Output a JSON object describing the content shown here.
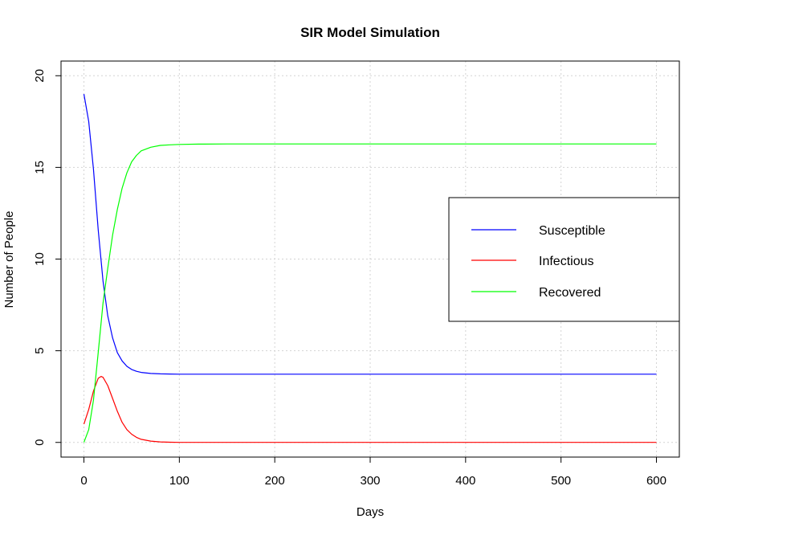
{
  "chart_data": {
    "type": "line",
    "title": "SIR Model Simulation",
    "xlabel": "Days",
    "ylabel": "Number of People",
    "xlim": [
      -24,
      624
    ],
    "ylim": [
      -0.8,
      20.8
    ],
    "x_ticks": [
      0,
      100,
      200,
      300,
      400,
      500,
      600
    ],
    "y_ticks": [
      0,
      5,
      10,
      15,
      20
    ],
    "grid": true,
    "legend_position": "right",
    "series": [
      {
        "name": "Susceptible",
        "color": "#0000ff",
        "x": [
          0,
          5,
          10,
          15,
          20,
          25,
          30,
          35,
          40,
          45,
          50,
          55,
          60,
          70,
          80,
          90,
          100,
          150,
          200,
          300,
          400,
          500,
          600
        ],
        "y": [
          19.0,
          17.5,
          14.9,
          11.6,
          8.8,
          6.9,
          5.7,
          4.9,
          4.45,
          4.15,
          3.98,
          3.88,
          3.82,
          3.76,
          3.74,
          3.73,
          3.72,
          3.72,
          3.72,
          3.72,
          3.72,
          3.72,
          3.72
        ]
      },
      {
        "name": "Infectious",
        "color": "#ff0000",
        "x": [
          0,
          5,
          10,
          15,
          18,
          20,
          25,
          30,
          35,
          40,
          45,
          50,
          55,
          60,
          70,
          80,
          90,
          100,
          150,
          200,
          300,
          400,
          500,
          600
        ],
        "y": [
          1.0,
          1.8,
          2.8,
          3.5,
          3.6,
          3.55,
          3.1,
          2.4,
          1.7,
          1.1,
          0.7,
          0.45,
          0.28,
          0.17,
          0.07,
          0.03,
          0.01,
          0.0,
          0.0,
          0.0,
          0.0,
          0.0,
          0.0,
          0.0
        ]
      },
      {
        "name": "Recovered",
        "color": "#00ff00",
        "x": [
          0,
          5,
          10,
          15,
          20,
          25,
          30,
          35,
          40,
          45,
          50,
          55,
          60,
          70,
          80,
          90,
          100,
          120,
          150,
          200,
          300,
          400,
          500,
          600
        ],
        "y": [
          0.0,
          0.7,
          2.3,
          4.9,
          7.6,
          9.5,
          11.3,
          12.7,
          13.85,
          14.7,
          15.3,
          15.65,
          15.9,
          16.1,
          16.2,
          16.23,
          16.25,
          16.27,
          16.28,
          16.28,
          16.28,
          16.28,
          16.28,
          16.28
        ]
      }
    ]
  }
}
